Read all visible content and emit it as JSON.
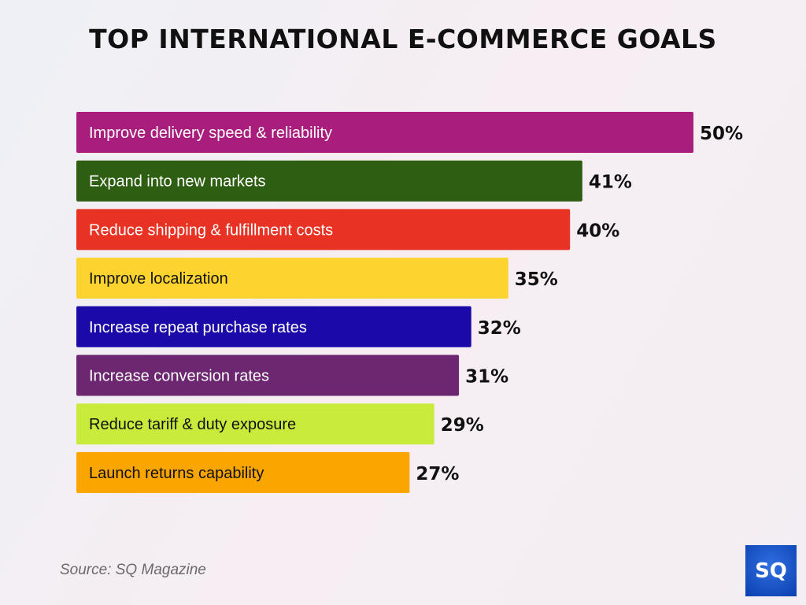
{
  "chart_data": {
    "type": "bar",
    "orientation": "horizontal",
    "title": "TOP INTERNATIONAL E-COMMERCE GOALS",
    "categories": [
      "Improve delivery speed & reliability",
      "Expand into new markets",
      "Reduce shipping & fulfillment costs",
      "Improve localization",
      "Increase repeat purchase rates",
      "Increase conversion rates",
      "Reduce tariff & duty exposure",
      "Launch returns capability"
    ],
    "values": [
      50,
      41,
      40,
      35,
      32,
      31,
      29,
      27
    ],
    "data_labels": [
      "50%",
      "41%",
      "40%",
      "35%",
      "32%",
      "31%",
      "29%",
      "27%"
    ],
    "colors": [
      "#A91E7C",
      "#2E5E12",
      "#E83324",
      "#FDD32F",
      "#1B0AA8",
      "#6C2770",
      "#C8EB3C",
      "#FBA501"
    ],
    "label_colors": [
      "#ffffff",
      "#ffffff",
      "#ffffff",
      "#111111",
      "#ffffff",
      "#ffffff",
      "#111111",
      "#111111"
    ],
    "xlim": [
      0,
      50
    ],
    "grid": false,
    "legend": "none"
  },
  "source": "Source: SQ Magazine",
  "logo_text": "SQ"
}
